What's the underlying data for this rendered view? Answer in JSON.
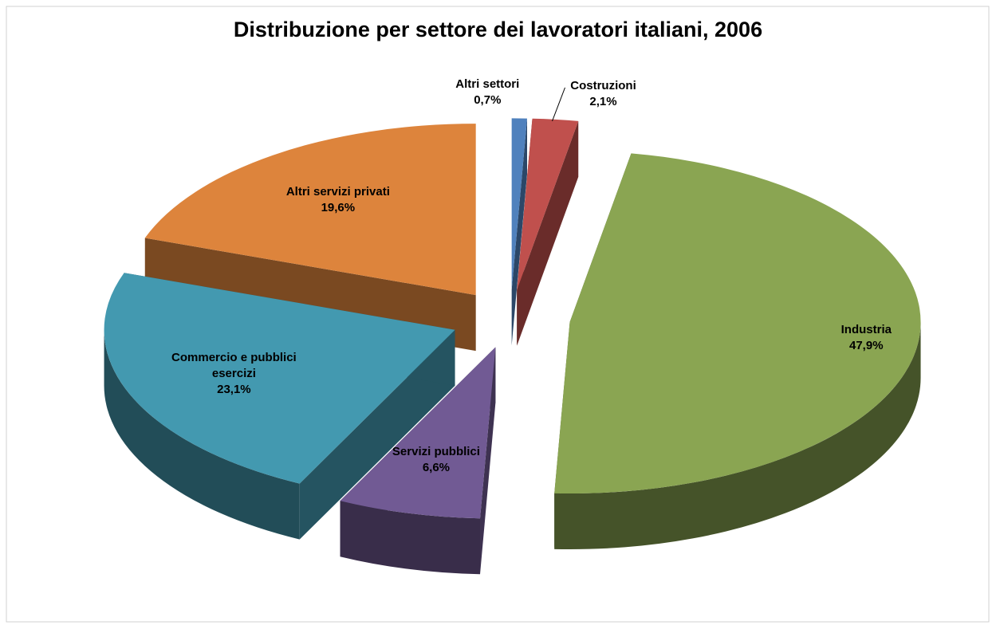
{
  "chart_data": {
    "type": "pie",
    "title": "Distribuzione per settore dei lavoratori italiani, 2006",
    "categories": [
      "Altri settori",
      "Costruzioni",
      "Industria",
      "Servizi pubblici",
      "Commercio e pubblici esercizi",
      "Altri servizi privati"
    ],
    "values": [
      0.7,
      2.1,
      47.9,
      6.6,
      23.1,
      19.6
    ],
    "value_labels": [
      "0,7%",
      "2,1%",
      "47,9%",
      "6,6%",
      "23,1%",
      "19,6%"
    ],
    "colors": [
      "#4f81bd",
      "#c0504d",
      "#8aa552",
      "#715a94",
      "#4399b0",
      "#dd843c"
    ]
  }
}
